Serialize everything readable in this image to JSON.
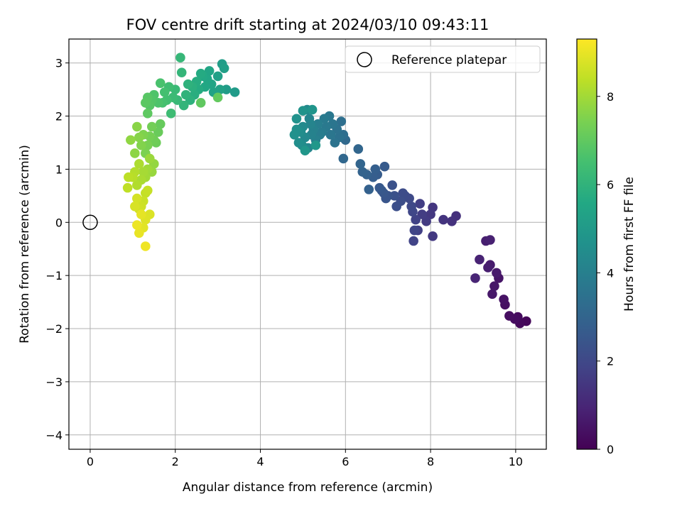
{
  "chart_data": {
    "type": "scatter",
    "title": "FOV centre drift starting at 2024/03/10 09:43:11",
    "xlabel": "Angular distance from reference (arcmin)",
    "ylabel": "Rotation from reference (arcmin)",
    "xlim": [
      -0.5,
      10.72
    ],
    "ylim": [
      -4.27,
      3.45
    ],
    "x_ticks": [
      0,
      2,
      4,
      6,
      8,
      10
    ],
    "y_ticks": [
      -4,
      -3,
      -2,
      -1,
      0,
      1,
      2,
      3
    ],
    "grid": true,
    "legend": {
      "position": "top-right",
      "entries": [
        "Reference platepar"
      ]
    },
    "reference_point": {
      "label": "Reference platepar",
      "x": 0,
      "y": 0
    },
    "colorbar": {
      "label": "Hours from first FF file",
      "colormap": "viridis",
      "range": [
        0,
        9.3
      ],
      "ticks": [
        0,
        2,
        4,
        6,
        8
      ]
    },
    "series": [
      {
        "points": [
          [
            10.25,
            -1.86,
            0.15
          ],
          [
            10.1,
            -1.9,
            0.2
          ],
          [
            10.05,
            -1.78,
            0.25
          ],
          [
            9.98,
            -1.82,
            0.3
          ],
          [
            9.85,
            -1.76,
            0.35
          ],
          [
            9.75,
            -1.55,
            0.4
          ],
          [
            9.72,
            -1.45,
            0.45
          ],
          [
            9.6,
            -1.05,
            0.5
          ],
          [
            9.5,
            -1.2,
            0.55
          ],
          [
            9.45,
            -1.35,
            0.6
          ],
          [
            9.55,
            -0.95,
            0.65
          ],
          [
            9.4,
            -0.8,
            0.7
          ],
          [
            9.35,
            -0.85,
            0.75
          ],
          [
            9.3,
            -0.35,
            0.8
          ],
          [
            9.4,
            -0.33,
            0.85
          ],
          [
            9.15,
            -0.7,
            0.9
          ],
          [
            9.05,
            -1.05,
            0.95
          ],
          [
            8.6,
            0.12,
            1.3
          ],
          [
            8.5,
            0.02,
            1.35
          ],
          [
            8.3,
            0.05,
            1.4
          ],
          [
            8.05,
            0.28,
            1.45
          ],
          [
            8.0,
            0.15,
            1.5
          ],
          [
            8.05,
            -0.26,
            1.55
          ],
          [
            7.9,
            0.02,
            1.6
          ],
          [
            7.8,
            0.15,
            1.65
          ],
          [
            7.75,
            0.35,
            1.7
          ],
          [
            7.7,
            -0.15,
            1.75
          ],
          [
            7.65,
            0.05,
            1.8
          ],
          [
            7.6,
            -0.35,
            1.85
          ],
          [
            7.62,
            -0.15,
            1.9
          ],
          [
            7.58,
            0.2,
            1.95
          ],
          [
            7.55,
            0.3,
            2.0
          ],
          [
            7.5,
            0.45,
            2.05
          ],
          [
            7.4,
            0.5,
            2.1
          ],
          [
            7.35,
            0.55,
            2.15
          ],
          [
            7.3,
            0.4,
            2.2
          ],
          [
            7.2,
            0.3,
            2.25
          ],
          [
            7.15,
            0.5,
            2.3
          ],
          [
            7.1,
            0.7,
            2.35
          ],
          [
            7.0,
            0.5,
            2.4
          ],
          [
            6.95,
            0.45,
            2.45
          ],
          [
            6.9,
            0.55,
            2.5
          ],
          [
            6.85,
            0.6,
            2.55
          ],
          [
            6.8,
            0.65,
            2.6
          ],
          [
            6.92,
            1.05,
            2.65
          ],
          [
            6.75,
            0.9,
            2.7
          ],
          [
            6.65,
            0.85,
            2.75
          ],
          [
            6.7,
            1.0,
            2.8
          ],
          [
            6.55,
            0.62,
            2.85
          ],
          [
            6.5,
            0.9,
            2.9
          ],
          [
            6.4,
            0.95,
            2.95
          ],
          [
            6.35,
            1.1,
            3.0
          ],
          [
            6.3,
            1.38,
            3.05
          ],
          [
            5.95,
            1.2,
            3.1
          ],
          [
            6.0,
            1.55,
            3.15
          ],
          [
            5.95,
            1.65,
            3.35
          ],
          [
            5.9,
            1.9,
            3.4
          ],
          [
            5.85,
            1.6,
            3.45
          ],
          [
            5.8,
            1.75,
            3.5
          ],
          [
            5.75,
            1.5,
            3.55
          ],
          [
            5.7,
            1.85,
            3.6
          ],
          [
            5.65,
            1.65,
            3.65
          ],
          [
            5.62,
            2.0,
            3.7
          ],
          [
            5.55,
            1.8,
            3.75
          ],
          [
            5.5,
            1.95,
            3.8
          ],
          [
            5.45,
            1.7,
            3.85
          ],
          [
            5.4,
            1.65,
            3.9
          ],
          [
            5.35,
            1.85,
            3.95
          ],
          [
            5.3,
            1.55,
            4.0
          ],
          [
            5.25,
            1.75,
            4.05
          ],
          [
            5.2,
            1.65,
            4.1
          ],
          [
            5.18,
            1.85,
            4.15
          ],
          [
            5.15,
            1.95,
            4.2
          ],
          [
            5.12,
            1.4,
            4.25
          ],
          [
            5.1,
            2.12,
            4.3
          ],
          [
            5.05,
            1.6,
            4.35
          ],
          [
            5.0,
            1.8,
            4.4
          ],
          [
            4.98,
            1.45,
            4.45
          ],
          [
            4.95,
            1.7,
            4.5
          ],
          [
            4.9,
            1.5,
            4.55
          ],
          [
            4.85,
            1.75,
            4.6
          ],
          [
            4.8,
            1.65,
            4.65
          ],
          [
            4.85,
            1.95,
            4.7
          ],
          [
            5.0,
            2.1,
            4.75
          ],
          [
            5.22,
            2.12,
            4.8
          ],
          [
            5.05,
            1.35,
            4.85
          ],
          [
            5.3,
            1.45,
            4.9
          ],
          [
            3.4,
            2.45,
            5.05
          ],
          [
            3.2,
            2.5,
            5.1
          ],
          [
            3.1,
            2.98,
            5.15
          ],
          [
            3.15,
            2.9,
            5.2
          ],
          [
            3.0,
            2.75,
            5.25
          ],
          [
            3.05,
            2.5,
            5.3
          ],
          [
            2.9,
            2.45,
            5.35
          ],
          [
            2.85,
            2.6,
            5.4
          ],
          [
            2.8,
            2.85,
            5.45
          ],
          [
            2.75,
            2.7,
            5.5
          ],
          [
            2.7,
            2.55,
            5.55
          ],
          [
            2.65,
            2.75,
            5.6
          ],
          [
            2.6,
            2.8,
            5.65
          ],
          [
            2.55,
            2.5,
            5.7
          ],
          [
            2.5,
            2.65,
            5.75
          ],
          [
            2.45,
            2.4,
            5.8
          ],
          [
            2.4,
            2.55,
            5.85
          ],
          [
            2.35,
            2.3,
            5.9
          ],
          [
            2.3,
            2.6,
            5.95
          ],
          [
            2.25,
            2.4,
            6.0
          ],
          [
            2.2,
            2.2,
            6.05
          ],
          [
            2.15,
            2.82,
            6.1
          ],
          [
            2.12,
            3.1,
            6.15
          ],
          [
            2.05,
            2.3,
            6.2
          ],
          [
            2.0,
            2.5,
            6.25
          ],
          [
            1.95,
            2.35,
            6.3
          ],
          [
            1.9,
            2.05,
            6.35
          ],
          [
            1.85,
            2.55,
            6.4
          ],
          [
            1.8,
            2.3,
            6.45
          ],
          [
            1.75,
            2.45,
            6.5
          ],
          [
            1.7,
            2.25,
            6.55
          ],
          [
            1.65,
            2.62,
            6.6
          ],
          [
            1.6,
            2.25,
            6.65
          ],
          [
            1.5,
            2.4,
            6.7
          ],
          [
            1.45,
            2.3,
            6.75
          ],
          [
            1.4,
            2.2,
            6.8
          ],
          [
            1.35,
            2.35,
            6.85
          ],
          [
            1.3,
            2.25,
            6.9
          ],
          [
            1.35,
            2.05,
            6.95
          ],
          [
            2.6,
            2.25,
            7.0
          ],
          [
            3.0,
            2.35,
            7.05
          ],
          [
            1.65,
            1.85,
            7.1
          ],
          [
            1.6,
            1.7,
            7.15
          ],
          [
            1.55,
            1.5,
            7.2
          ],
          [
            1.5,
            1.55,
            7.25
          ],
          [
            1.45,
            1.8,
            7.3
          ],
          [
            1.4,
            1.62,
            7.35
          ],
          [
            1.35,
            1.45,
            7.4
          ],
          [
            1.3,
            1.3,
            7.45
          ],
          [
            1.25,
            1.65,
            7.5
          ],
          [
            1.2,
            1.45,
            7.55
          ],
          [
            1.15,
            1.6,
            7.6
          ],
          [
            1.1,
            1.8,
            7.65
          ],
          [
            1.05,
            1.3,
            7.7
          ],
          [
            0.95,
            1.55,
            7.75
          ],
          [
            1.5,
            1.1,
            7.8
          ],
          [
            1.45,
            0.95,
            7.85
          ],
          [
            1.4,
            1.2,
            7.9
          ],
          [
            1.35,
            1.0,
            7.95
          ],
          [
            1.3,
            0.85,
            8.0
          ],
          [
            1.25,
            0.95,
            8.05
          ],
          [
            1.2,
            0.8,
            8.1
          ],
          [
            1.15,
            1.1,
            8.15
          ],
          [
            1.1,
            0.7,
            8.2
          ],
          [
            1.05,
            0.95,
            8.25
          ],
          [
            1.0,
            0.85,
            8.3
          ],
          [
            0.9,
            0.85,
            8.35
          ],
          [
            0.88,
            0.65,
            8.4
          ],
          [
            1.3,
            0.55,
            8.45
          ],
          [
            1.35,
            0.6,
            8.5
          ],
          [
            1.25,
            0.4,
            8.55
          ],
          [
            1.2,
            0.3,
            8.6
          ],
          [
            1.15,
            0.25,
            8.65
          ],
          [
            1.1,
            0.45,
            8.7
          ],
          [
            1.05,
            0.3,
            8.75
          ],
          [
            1.4,
            0.15,
            8.8
          ],
          [
            1.3,
            0.05,
            8.85
          ],
          [
            1.25,
            -0.1,
            8.9
          ],
          [
            1.2,
            0.15,
            8.95
          ],
          [
            1.15,
            -0.2,
            9.0
          ],
          [
            1.1,
            -0.05,
            9.05
          ],
          [
            1.3,
            -0.45,
            9.1
          ]
        ]
      }
    ]
  }
}
